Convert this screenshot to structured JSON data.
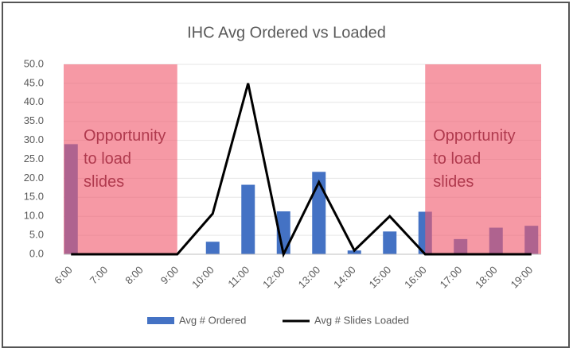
{
  "chart_data": {
    "type": "bar-line",
    "title": "IHC Avg Ordered vs Loaded",
    "categories": [
      "6:00",
      "7:00",
      "8:00",
      "9:00",
      "10:00",
      "11:00",
      "12:00",
      "13:00",
      "14:00",
      "15:00",
      "16:00",
      "17:00",
      "18:00",
      "19:00"
    ],
    "series": [
      {
        "name": "Avg # Ordered",
        "type": "bar",
        "color": "#4472c4",
        "values": [
          29,
          0,
          0,
          0,
          3.3,
          18.3,
          11.3,
          21.7,
          1,
          6,
          11.2,
          4,
          7,
          7.5
        ]
      },
      {
        "name": "Avg # Slides Loaded",
        "type": "line",
        "color": "#000000",
        "values": [
          0,
          0,
          0,
          0,
          10.7,
          45,
          0,
          19,
          1,
          10,
          0,
          0,
          0,
          0
        ]
      }
    ],
    "ylim": [
      0,
      50
    ],
    "yticks": [
      {
        "value": 0,
        "label": "0.0"
      },
      {
        "value": 5,
        "label": "5.0"
      },
      {
        "value": 10,
        "label": "10.0"
      },
      {
        "value": 15,
        "label": "15.0"
      },
      {
        "value": 20,
        "label": "20.0"
      },
      {
        "value": 25,
        "label": "25.0"
      },
      {
        "value": 30,
        "label": "30.0"
      },
      {
        "value": 35,
        "label": "35.0"
      },
      {
        "value": 40,
        "label": "40.0"
      },
      {
        "value": 45,
        "label": "45.0"
      },
      {
        "value": 50,
        "label": "50.0"
      }
    ],
    "grid": true,
    "annotations": [
      {
        "lines": [
          "Opportunity",
          "to load",
          "slides"
        ]
      },
      {
        "lines": [
          "Opportunity",
          "to load",
          "slides"
        ]
      }
    ]
  }
}
